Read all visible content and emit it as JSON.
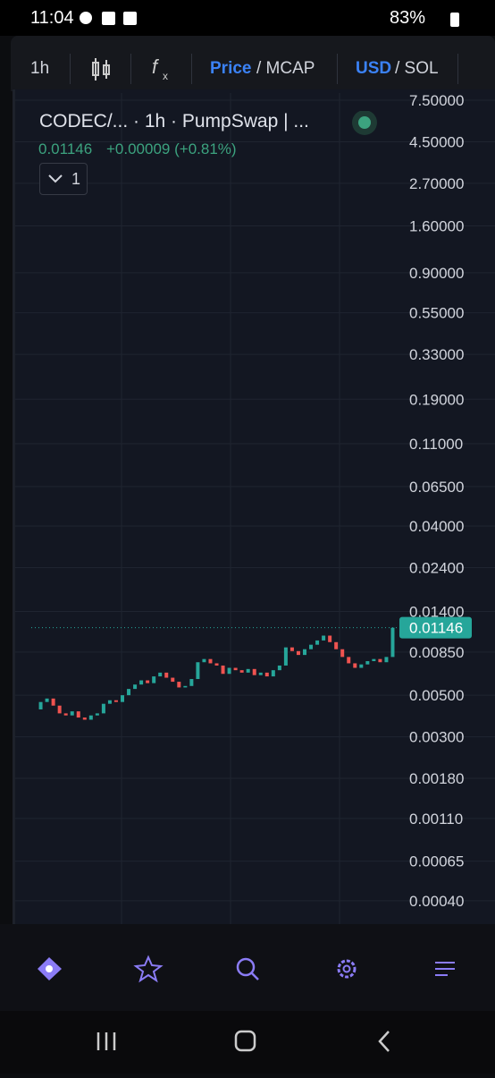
{
  "status": {
    "time": "11:04",
    "battery": "83%"
  },
  "toolbar": {
    "interval": "1h",
    "price": "Price",
    "mcap": "/ MCAP",
    "usd": "USD",
    "sol": "/ SOL"
  },
  "header": {
    "symbol": "CODEC/...  · 1h · PumpSwap | ...",
    "price": "0.01146",
    "change": "+0.00009 (+0.81%)",
    "indicators": "1"
  },
  "chart_data": {
    "type": "candlestick",
    "log_scale": true,
    "grid": true,
    "up_color": "#26a69a",
    "down_color": "#ef5350",
    "ylim": [
      0.00031,
      7.5
    ],
    "yticks": [
      {
        "value": 7.5,
        "label": "7.50000"
      },
      {
        "value": 4.5,
        "label": "4.50000"
      },
      {
        "value": 2.7,
        "label": "2.70000"
      },
      {
        "value": 1.6,
        "label": "1.60000"
      },
      {
        "value": 0.9,
        "label": "0.90000"
      },
      {
        "value": 0.55,
        "label": "0.55000"
      },
      {
        "value": 0.33,
        "label": "0.33000"
      },
      {
        "value": 0.19,
        "label": "0.19000"
      },
      {
        "value": 0.11,
        "label": "0.11000"
      },
      {
        "value": 0.065,
        "label": "0.06500"
      },
      {
        "value": 0.04,
        "label": "0.04000"
      },
      {
        "value": 0.024,
        "label": "0.02400"
      },
      {
        "value": 0.014,
        "label": "0.01400"
      },
      {
        "value": 0.0085,
        "label": "0.00850"
      },
      {
        "value": 0.005,
        "label": "0.00500"
      },
      {
        "value": 0.003,
        "label": "0.00300"
      },
      {
        "value": 0.0018,
        "label": "0.00180"
      },
      {
        "value": 0.0011,
        "label": "0.00110"
      },
      {
        "value": 0.00065,
        "label": "0.00065"
      },
      {
        "value": 0.0004,
        "label": "0.00040"
      }
    ],
    "values": [
      0.0042,
      0.0046,
      0.0048,
      0.0044,
      0.004,
      0.0039,
      0.0041,
      0.0038,
      0.0037,
      0.0039,
      0.004,
      0.0045,
      0.0047,
      0.0046,
      0.005,
      0.0054,
      0.0057,
      0.006,
      0.0058,
      0.0063,
      0.0066,
      0.0062,
      0.0059,
      0.0055,
      0.0056,
      0.0061,
      0.0075,
      0.0078,
      0.0074,
      0.0072,
      0.0065,
      0.007,
      0.0068,
      0.0066,
      0.0069,
      0.0064,
      0.0066,
      0.0063,
      0.0068,
      0.0072,
      0.009,
      0.0086,
      0.0082,
      0.0088,
      0.0093,
      0.0098,
      0.0104,
      0.0096,
      0.0088,
      0.008,
      0.0074,
      0.007,
      0.0073,
      0.0076,
      0.0078,
      0.0075,
      0.008,
      0.01146
    ],
    "last_value": {
      "value": 0.01146,
      "label": "0.01146"
    }
  }
}
